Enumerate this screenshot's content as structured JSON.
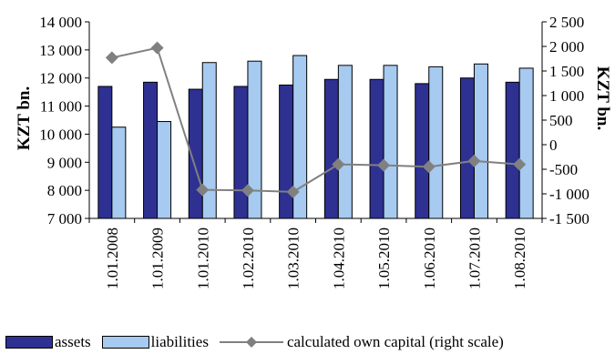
{
  "chart_data": {
    "type": "bar",
    "categories": [
      "1.01.2008",
      "1.01.2009",
      "1.01.2010",
      "1.02.2010",
      "1.03.2010",
      "1.04.2010",
      "1.05.2010",
      "1.06.2010",
      "1.07.2010",
      "1.08.2010"
    ],
    "series": [
      {
        "name": "assets",
        "type": "bar",
        "axis": "left",
        "color": "#2E3192",
        "values": [
          11700,
          11850,
          11600,
          11700,
          11750,
          11950,
          11950,
          11800,
          12000,
          11850
        ]
      },
      {
        "name": "liabilities",
        "type": "bar",
        "axis": "left",
        "color": "#A6CAF0",
        "values": [
          10250,
          10450,
          12550,
          12600,
          12800,
          12450,
          12450,
          12400,
          12500,
          12350
        ]
      },
      {
        "name": "calculated own capital (right scale)",
        "type": "line",
        "axis": "right",
        "color": "#808080",
        "marker": "diamond",
        "values": [
          1770,
          1970,
          -920,
          -930,
          -960,
          -400,
          -420,
          -450,
          -330,
          -400
        ]
      }
    ],
    "ylabel": "KZT bn.",
    "y2label": "KZT bn.",
    "ylim": [
      7000,
      14000
    ],
    "y2lim": [
      -1500,
      2500
    ],
    "yticks": [
      "7 000",
      "8 000",
      "9 000",
      "10 000",
      "11 000",
      "12 000",
      "13 000",
      "14 000"
    ],
    "y2ticks": [
      "-1 500",
      "-1 000",
      "-500",
      "0",
      "500",
      "1 000",
      "1 500",
      "2 000",
      "2 500"
    ],
    "legend_position": "bottom",
    "grid": false
  }
}
